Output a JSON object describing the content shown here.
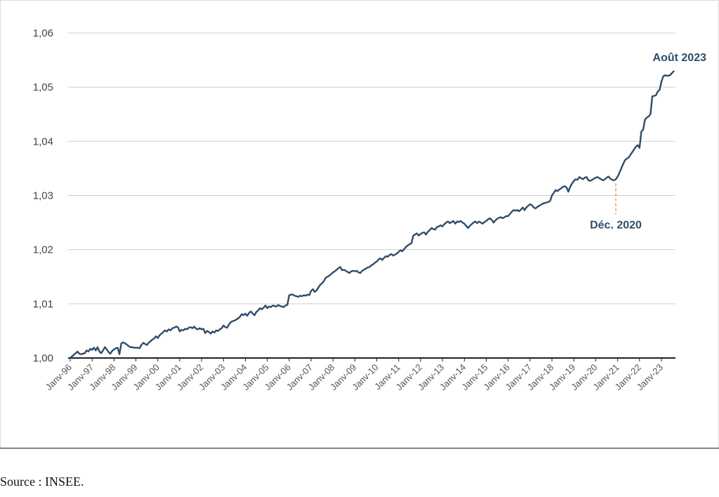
{
  "chart_data": {
    "type": "line",
    "categories": [
      "Janv-96",
      null,
      null,
      null,
      null,
      null,
      null,
      null,
      null,
      null,
      null,
      null,
      "Janv-97",
      null,
      null,
      null,
      null,
      null,
      null,
      null,
      null,
      null,
      null,
      null,
      "Janv-98",
      null,
      null,
      null,
      null,
      null,
      null,
      null,
      null,
      null,
      null,
      null,
      "Janv-99",
      null,
      null,
      null,
      null,
      null,
      null,
      null,
      null,
      null,
      null,
      null,
      "Janv-00",
      null,
      null,
      null,
      null,
      null,
      null,
      null,
      null,
      null,
      null,
      null,
      "Janv-01",
      null,
      null,
      null,
      null,
      null,
      null,
      null,
      null,
      null,
      null,
      null,
      "Janv-02",
      null,
      null,
      null,
      null,
      null,
      null,
      null,
      null,
      null,
      null,
      null,
      "Janv-03",
      null,
      null,
      null,
      null,
      null,
      null,
      null,
      null,
      null,
      null,
      null,
      "Janv-04",
      null,
      null,
      null,
      null,
      null,
      null,
      null,
      null,
      null,
      null,
      null,
      "Janv-05",
      null,
      null,
      null,
      null,
      null,
      null,
      null,
      null,
      null,
      null,
      null,
      "Janv-06",
      null,
      null,
      null,
      null,
      null,
      null,
      null,
      null,
      null,
      null,
      null,
      "Janv-07",
      null,
      null,
      null,
      null,
      null,
      null,
      null,
      null,
      null,
      null,
      null,
      "Janv-08",
      null,
      null,
      null,
      null,
      null,
      null,
      null,
      null,
      null,
      null,
      null,
      "Janv-09",
      null,
      null,
      null,
      null,
      null,
      null,
      null,
      null,
      null,
      null,
      null,
      "Janv-10",
      null,
      null,
      null,
      null,
      null,
      null,
      null,
      null,
      null,
      null,
      null,
      "Janv-11",
      null,
      null,
      null,
      null,
      null,
      null,
      null,
      null,
      null,
      null,
      null,
      "Janv-12",
      null,
      null,
      null,
      null,
      null,
      null,
      null,
      null,
      null,
      null,
      null,
      "Janv-13",
      null,
      null,
      null,
      null,
      null,
      null,
      null,
      null,
      null,
      null,
      null,
      "Janv-14",
      null,
      null,
      null,
      null,
      null,
      null,
      null,
      null,
      null,
      null,
      null,
      "Janv-15",
      null,
      null,
      null,
      null,
      null,
      null,
      null,
      null,
      null,
      null,
      null,
      "Janv-16",
      null,
      null,
      null,
      null,
      null,
      null,
      null,
      null,
      null,
      null,
      null,
      "Janv-17",
      null,
      null,
      null,
      null,
      null,
      null,
      null,
      null,
      null,
      null,
      null,
      "Janv-18",
      null,
      null,
      null,
      null,
      null,
      null,
      null,
      null,
      null,
      null,
      null,
      "Janv-19",
      null,
      null,
      null,
      null,
      null,
      null,
      null,
      null,
      null,
      null,
      null,
      "Janv-20",
      null,
      null,
      null,
      null,
      null,
      null,
      null,
      null,
      null,
      null,
      null,
      "Janv-21",
      null,
      null,
      null,
      null,
      null,
      null,
      null,
      null,
      null,
      null,
      null,
      "Janv-22",
      null,
      null,
      null,
      null,
      null,
      null,
      null,
      null,
      null,
      null,
      null,
      "Janv-23",
      null,
      null,
      null,
      null,
      null,
      null,
      null
    ],
    "values": [
      1.0,
      1.0003,
      1.0006,
      1.0009,
      1.0012,
      1.0008,
      1.0007,
      1.0008,
      1.0009,
      1.0014,
      1.0012,
      1.0017,
      1.0015,
      1.0019,
      1.0014,
      1.002,
      1.0012,
      1.0009,
      1.0014,
      1.002,
      1.0016,
      1.0011,
      1.0008,
      1.0013,
      1.0016,
      1.0018,
      1.0019,
      1.0007,
      1.0027,
      1.0029,
      1.0027,
      1.0025,
      1.0022,
      1.002,
      1.002,
      1.0019,
      1.0019,
      1.0019,
      1.0018,
      1.0024,
      1.0028,
      1.0026,
      1.0024,
      1.0028,
      1.0031,
      1.0034,
      1.0036,
      1.004,
      1.0037,
      1.0042,
      1.0045,
      1.0048,
      1.0051,
      1.0049,
      1.0053,
      1.0051,
      1.0055,
      1.0056,
      1.0058,
      1.0057,
      1.0049,
      1.0052,
      1.0051,
      1.0054,
      1.0053,
      1.0056,
      1.0057,
      1.0055,
      1.0058,
      1.0054,
      1.0053,
      1.0055,
      1.0053,
      1.0054,
      1.0046,
      1.005,
      1.0048,
      1.0045,
      1.0049,
      1.0047,
      1.0051,
      1.005,
      1.0053,
      1.0055,
      1.006,
      1.0057,
      1.0056,
      1.0062,
      1.0066,
      1.0068,
      1.0069,
      1.0071,
      1.0073,
      1.0076,
      1.0081,
      1.0079,
      1.0082,
      1.0078,
      1.0083,
      1.0086,
      1.0082,
      1.0079,
      1.0085,
      1.0088,
      1.0092,
      1.009,
      1.0093,
      1.0097,
      1.0092,
      1.0095,
      1.0094,
      1.0097,
      1.0096,
      1.0095,
      1.0098,
      1.0096,
      1.0095,
      1.0094,
      1.0097,
      1.0098,
      1.0116,
      1.0117,
      1.0117,
      1.0115,
      1.0114,
      1.0113,
      1.0115,
      1.0114,
      1.0116,
      1.0115,
      1.0117,
      1.0116,
      1.0124,
      1.0127,
      1.0122,
      1.0125,
      1.013,
      1.0135,
      1.0138,
      1.0142,
      1.0148,
      1.015,
      1.0152,
      1.0155,
      1.0158,
      1.016,
      1.0163,
      1.0166,
      1.0168,
      1.0162,
      1.0163,
      1.0161,
      1.0159,
      1.0157,
      1.016,
      1.0161,
      1.016,
      1.0161,
      1.0158,
      1.0157,
      1.0161,
      1.0163,
      1.0165,
      1.0167,
      1.0168,
      1.0171,
      1.0173,
      1.0176,
      1.0178,
      1.0182,
      1.0184,
      1.0181,
      1.0185,
      1.0188,
      1.0187,
      1.019,
      1.0192,
      1.0189,
      1.0191,
      1.0193,
      1.0196,
      1.0199,
      1.0197,
      1.0201,
      1.0205,
      1.0208,
      1.021,
      1.0212,
      1.0226,
      1.0228,
      1.023,
      1.0226,
      1.0229,
      1.0231,
      1.0232,
      1.0228,
      1.0233,
      1.0236,
      1.024,
      1.0238,
      1.0237,
      1.0242,
      1.0243,
      1.0245,
      1.0243,
      1.0247,
      1.025,
      1.0252,
      1.0249,
      1.0251,
      1.0253,
      1.0248,
      1.0252,
      1.0251,
      1.0253,
      1.025,
      1.0248,
      1.0244,
      1.024,
      1.0244,
      1.0247,
      1.025,
      1.0252,
      1.0249,
      1.0252,
      1.025,
      1.0248,
      1.0251,
      1.0253,
      1.0256,
      1.0258,
      1.0255,
      1.025,
      1.0254,
      1.0257,
      1.0259,
      1.026,
      1.0258,
      1.026,
      1.0262,
      1.0262,
      1.0266,
      1.027,
      1.0273,
      1.0272,
      1.0273,
      1.0271,
      1.0274,
      1.0278,
      1.0273,
      1.0278,
      1.0281,
      1.0284,
      1.0282,
      1.0278,
      1.0276,
      1.0279,
      1.0281,
      1.0283,
      1.0285,
      1.0286,
      1.0287,
      1.0288,
      1.029,
      1.03,
      1.0305,
      1.031,
      1.0308,
      1.0311,
      1.0313,
      1.0316,
      1.0317,
      1.0315,
      1.0307,
      1.0316,
      1.0322,
      1.0327,
      1.033,
      1.0329,
      1.0334,
      1.0332,
      1.033,
      1.0333,
      1.0334,
      1.0328,
      1.0327,
      1.0329,
      1.0331,
      1.0333,
      1.0334,
      1.0332,
      1.033,
      1.0328,
      1.033,
      1.0333,
      1.0335,
      1.0331,
      1.0329,
      1.0328,
      1.033,
      1.0335,
      1.0342,
      1.035,
      1.0358,
      1.0365,
      1.0368,
      1.037,
      1.0375,
      1.038,
      1.0385,
      1.039,
      1.0393,
      1.0388,
      1.0418,
      1.0422,
      1.044,
      1.0444,
      1.0446,
      1.045,
      1.0483,
      1.0484,
      1.0485,
      1.0492,
      1.0495,
      1.051,
      1.052,
      1.0522,
      1.0521,
      1.0521,
      1.0523,
      1.0527,
      1.053
    ],
    "color": "#2e4d6b",
    "ylim": [
      1.0,
      1.06
    ],
    "yticks": [
      {
        "value": 1.0,
        "label": "1,00"
      },
      {
        "value": 1.01,
        "label": "1,01"
      },
      {
        "value": 1.02,
        "label": "1,02"
      },
      {
        "value": 1.03,
        "label": "1,03"
      },
      {
        "value": 1.04,
        "label": "1,04"
      },
      {
        "value": 1.05,
        "label": "1,05"
      },
      {
        "value": 1.06,
        "label": "1,06"
      }
    ],
    "grid": true,
    "annotations": [
      "Août 2023",
      "Déc. 2020"
    ],
    "source": "Source : INSEE."
  }
}
